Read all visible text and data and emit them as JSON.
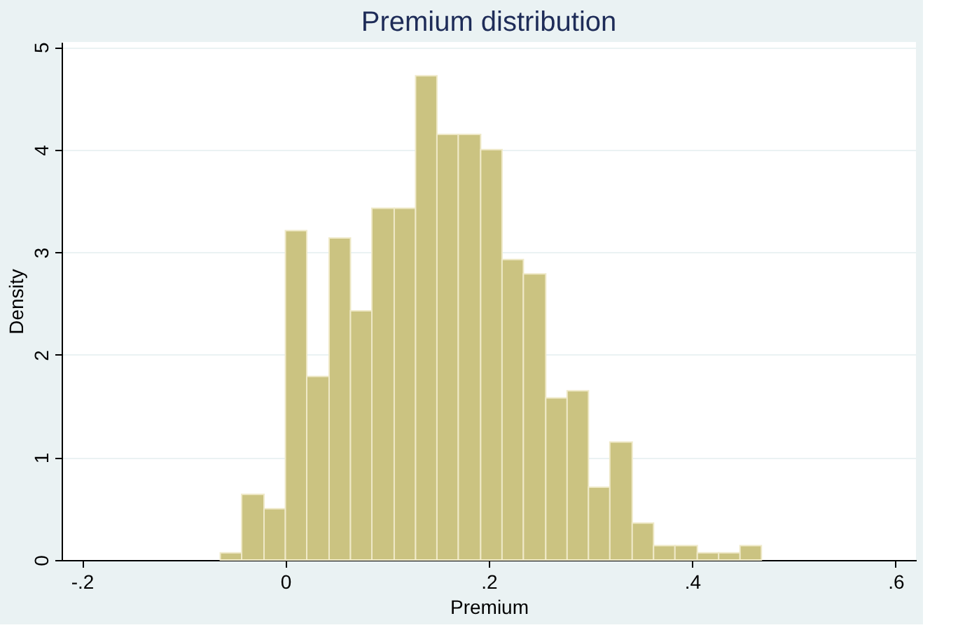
{
  "chart_data": {
    "type": "histogram",
    "title": "Premium distribution",
    "xlabel": "Premium",
    "ylabel": "Density",
    "bins": [
      -0.064,
      -0.043,
      -0.021,
      0.0,
      0.021,
      0.043,
      0.064,
      0.085,
      0.107,
      0.128,
      0.149,
      0.17,
      0.192,
      0.213,
      0.234,
      0.256,
      0.277,
      0.298,
      0.319,
      0.341,
      0.362,
      0.383,
      0.405,
      0.426,
      0.447,
      0.468
    ],
    "values": [
      0.07,
      0.64,
      0.5,
      3.21,
      1.79,
      3.14,
      2.43,
      3.43,
      3.43,
      4.72,
      4.15,
      4.15,
      4.0,
      2.93,
      2.79,
      1.58,
      1.65,
      0.71,
      1.15,
      0.36,
      0.14,
      0.14,
      0.07,
      0.07,
      0.14
    ],
    "color": "#cbc381",
    "xlim": [
      -0.22,
      0.62
    ],
    "xticks": [
      {
        "value": -0.2,
        "label": "-.2"
      },
      0,
      {
        "value": 0.2,
        "label": ".2"
      },
      {
        "value": 0.4,
        "label": ".4"
      },
      {
        "value": 0.6,
        "label": ".6"
      }
    ],
    "ylim": [
      0,
      5.05
    ],
    "yticks": [
      0,
      1,
      2,
      3,
      4,
      5
    ],
    "grid": "y"
  }
}
